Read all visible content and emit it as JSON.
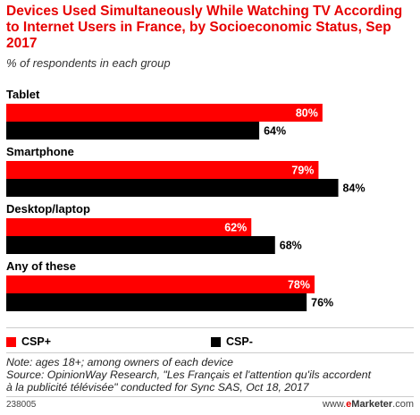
{
  "header": {
    "title": "Devices Used Simultaneously While Watching TV According to Internet Users in France, by Socioeconomic Status, Sep 2017",
    "subtitle": "% of respondents in each group"
  },
  "colors": {
    "csp_plus": "#ff0000",
    "csp_minus": "#000000",
    "title": "#e60000"
  },
  "chart_data": {
    "type": "bar",
    "orientation": "horizontal",
    "categories": [
      "Tablet",
      "Smartphone",
      "Desktop/laptop",
      "Any of these"
    ],
    "series": [
      {
        "name": "CSP+",
        "values": [
          80,
          79,
          62,
          78
        ]
      },
      {
        "name": "CSP-",
        "values": [
          64,
          84,
          68,
          76
        ]
      }
    ],
    "value_suffix": "%",
    "xlim": [
      0,
      100
    ],
    "grid": false,
    "legend": "bottom-left"
  },
  "legend": {
    "items": [
      "CSP+",
      "CSP-"
    ]
  },
  "note": {
    "line1": "Note: ages 18+; among owners of each device",
    "line2": "Source: OpinionWay Research, \"Les Français et l'attention qu'ils accordent",
    "line3": "à la publicité télévisée\" conducted for Sync SAS, Oct 18, 2017"
  },
  "footer": {
    "id": "238005",
    "brand_prefix": "www.",
    "brand_e": "e",
    "brand_name": "Marketer",
    "brand_suffix": ".com"
  }
}
